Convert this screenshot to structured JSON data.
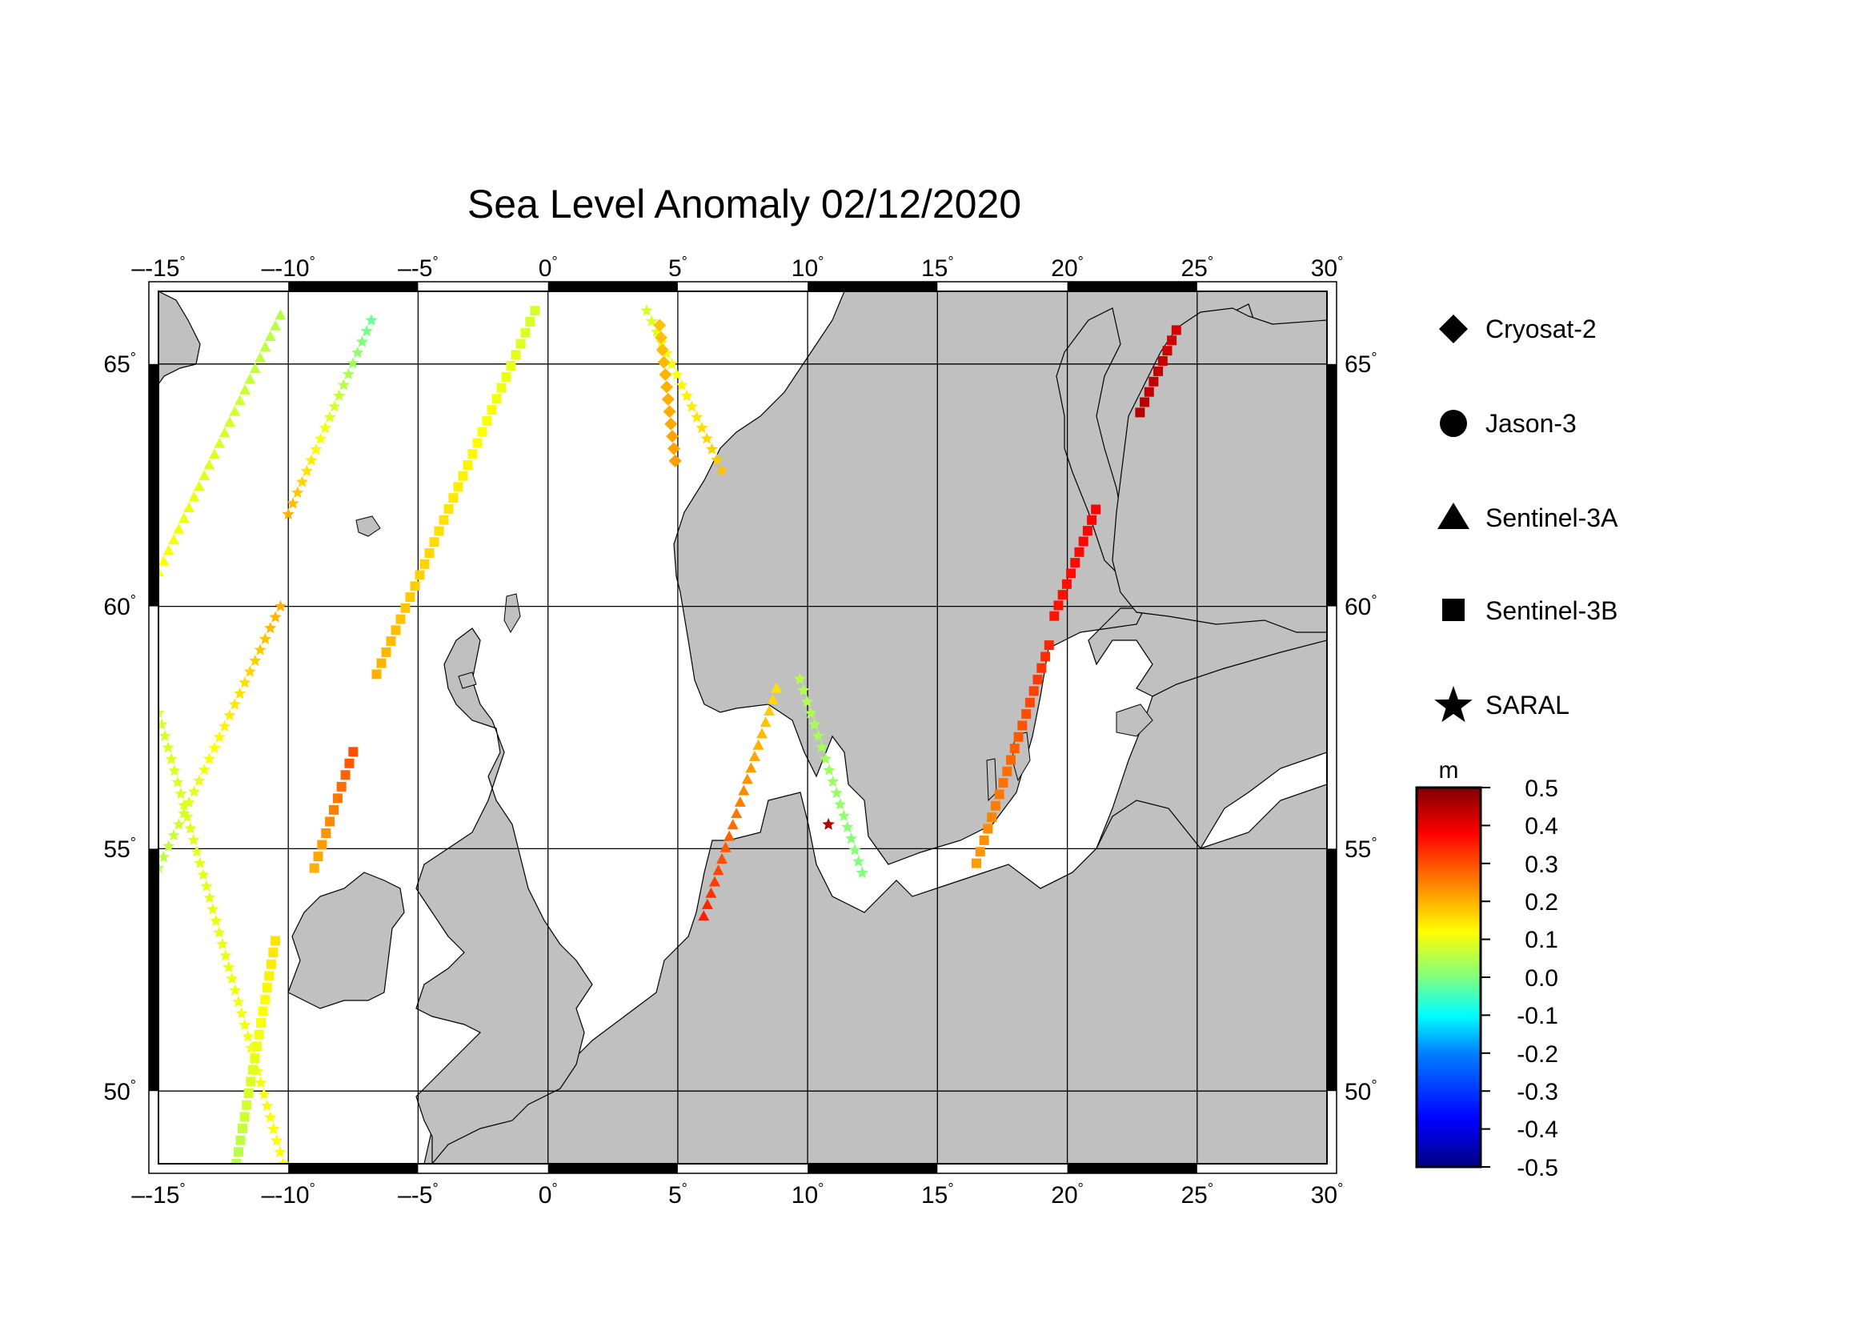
{
  "title": "Sea Level Anomaly 02/12/2020",
  "map": {
    "lon_range": [
      -15,
      30
    ],
    "lat_range": [
      48.5,
      66.5
    ],
    "grid_lons": [
      -15,
      -10,
      -5,
      0,
      5,
      10,
      15,
      20,
      25,
      30
    ],
    "grid_lats": [
      50,
      55,
      60,
      65
    ],
    "lon_tick_labels": [
      "-15",
      "-10",
      "-5",
      "0",
      "5",
      "10",
      "15",
      "20",
      "25",
      "30"
    ],
    "lat_tick_labels": [
      "50",
      "55",
      "60",
      "65"
    ],
    "degree_symbol": "°",
    "minus_sign": "–",
    "land_color": "#c0c0c0",
    "sea_color": "#ffffff"
  },
  "legend": {
    "items": [
      {
        "label": "Cryosat-2",
        "symbol": "diamond"
      },
      {
        "label": "Jason-3",
        "symbol": "circle"
      },
      {
        "label": "Sentinel-3A",
        "symbol": "triangle"
      },
      {
        "label": "Sentinel-3B",
        "symbol": "square"
      },
      {
        "label": "SARAL",
        "symbol": "star"
      }
    ]
  },
  "colorbar": {
    "unit": "m",
    "min": -0.5,
    "max": 0.5,
    "tick_labels": [
      "0.5",
      "0.4",
      "0.3",
      "0.2",
      "0.1",
      "0.0",
      "-0.1",
      "-0.2",
      "-0.3",
      "-0.4",
      "-0.5"
    ],
    "colors": [
      "#000080",
      "#0000ff",
      "#0080ff",
      "#00ffff",
      "#80ff80",
      "#ffff00",
      "#ff8000",
      "#ff0000",
      "#800000"
    ]
  },
  "chart_data": {
    "type": "scatter",
    "title": "Sea Level Anomaly 02/12/2020",
    "value_unit": "m",
    "tracks": [
      {
        "satellite": "SARAL",
        "lon": [
          -15.0,
          -10.2
        ],
        "lat": [
          57.8,
          48.5
        ],
        "sla": [
          0.08,
          0.12
        ]
      },
      {
        "satellite": "SARAL",
        "lon": [
          -15.0,
          -10.3
        ],
        "lat": [
          54.6,
          60.0
        ],
        "sla": [
          0.05,
          0.2
        ]
      },
      {
        "satellite": "SARAL",
        "lon": [
          -10.0,
          -6.8
        ],
        "lat": [
          61.9,
          65.9
        ],
        "sla": [
          0.2,
          -0.02
        ]
      },
      {
        "satellite": "SARAL",
        "lon": [
          3.8,
          6.7
        ],
        "lat": [
          66.1,
          62.8
        ],
        "sla": [
          0.08,
          0.18
        ]
      },
      {
        "satellite": "SARAL",
        "lon": [
          9.7,
          12.1
        ],
        "lat": [
          58.5,
          54.5
        ],
        "sla": [
          0.05,
          0.0
        ]
      },
      {
        "satellite": "SARAL",
        "lon": [
          10.8,
          10.8
        ],
        "lat": [
          55.5,
          55.5
        ],
        "sla": [
          0.45,
          0.45
        ]
      },
      {
        "satellite": "Sentinel-3A",
        "lon": [
          -15.0,
          -10.3
        ],
        "lat": [
          60.7,
          66.0
        ],
        "sla": [
          0.12,
          0.05
        ]
      },
      {
        "satellite": "Sentinel-3A",
        "lon": [
          6.0,
          8.8
        ],
        "lat": [
          53.6,
          58.3
        ],
        "sla": [
          0.35,
          0.15
        ]
      },
      {
        "satellite": "Sentinel-3B",
        "lon": [
          -12.0,
          -10.5
        ],
        "lat": [
          48.5,
          53.1
        ],
        "sla": [
          0.05,
          0.15
        ]
      },
      {
        "satellite": "Sentinel-3B",
        "lon": [
          -9.0,
          -7.5
        ],
        "lat": [
          54.6,
          57.0
        ],
        "sla": [
          0.2,
          0.3
        ]
      },
      {
        "satellite": "Sentinel-3B",
        "lon": [
          -6.6,
          -0.5
        ],
        "lat": [
          58.6,
          66.1
        ],
        "sla": [
          0.2,
          0.08
        ]
      },
      {
        "satellite": "Sentinel-3B",
        "lon": [
          16.5,
          19.3
        ],
        "lat": [
          54.7,
          59.2
        ],
        "sla": [
          0.22,
          0.34
        ]
      },
      {
        "satellite": "Sentinel-3B",
        "lon": [
          19.5,
          21.1
        ],
        "lat": [
          59.8,
          62.0
        ],
        "sla": [
          0.36,
          0.38
        ]
      },
      {
        "satellite": "Sentinel-3B",
        "lon": [
          22.8,
          24.2
        ],
        "lat": [
          64.0,
          65.7
        ],
        "sla": [
          0.45,
          0.42
        ]
      },
      {
        "satellite": "Cryosat-2",
        "lon": [
          4.3,
          4.9
        ],
        "lat": [
          65.8,
          63.0
        ],
        "sla": [
          0.18,
          0.22
        ]
      }
    ]
  }
}
